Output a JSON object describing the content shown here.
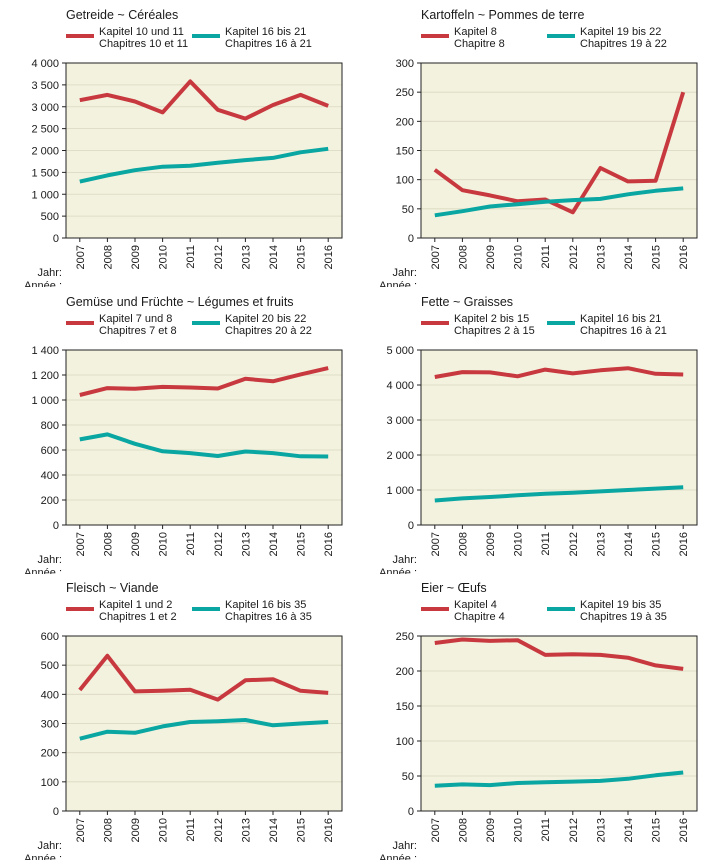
{
  "axis_captions": [
    "Jahr:",
    "Année :"
  ],
  "colors": {
    "red": "#c8393f",
    "teal": "#0aa6a2"
  },
  "chart_data": [
    {
      "type": "line",
      "title": "Getreide  ~  Céréales",
      "x": [
        "2007",
        "2008",
        "2009",
        "2010",
        "2011",
        "2012",
        "2013",
        "2014",
        "2015",
        "2016"
      ],
      "ylim": [
        0,
        4000
      ],
      "yticks": [
        0,
        500,
        1000,
        1500,
        2000,
        2500,
        3000,
        3500,
        4000
      ],
      "ytick_labels": [
        "0",
        "500",
        "1 000",
        "1 500",
        "2 000",
        "2 500",
        "3 000",
        "3 500",
        "4 000"
      ],
      "series": [
        {
          "name": "Kapitel 10 und 11",
          "name2": "Chapitres 10 et 11",
          "color": "#c8393f",
          "values": [
            3150,
            3270,
            3120,
            2870,
            3580,
            2930,
            2730,
            3040,
            3270,
            3020
          ]
        },
        {
          "name": "Kapitel 16 bis 21",
          "name2": "Chapitres 16 à 21",
          "color": "#0aa6a2",
          "values": [
            1290,
            1430,
            1550,
            1630,
            1650,
            1720,
            1780,
            1830,
            1960,
            2040
          ]
        }
      ]
    },
    {
      "type": "line",
      "title": "Kartoffeln  ~  Pommes de terre",
      "x": [
        "2007",
        "2008",
        "2009",
        "2010",
        "2011",
        "2012",
        "2013",
        "2014",
        "2015",
        "2016"
      ],
      "ylim": [
        0,
        300
      ],
      "yticks": [
        0,
        50,
        100,
        150,
        200,
        250,
        300
      ],
      "ytick_labels": [
        "0",
        "50",
        "100",
        "150",
        "200",
        "250",
        "300"
      ],
      "series": [
        {
          "name": "Kapitel 8",
          "name2": "Chapitre 8",
          "color": "#c8393f",
          "values": [
            117,
            82,
            73,
            63,
            66,
            44,
            120,
            97,
            98,
            250
          ]
        },
        {
          "name": "Kapitel 19 bis 22",
          "name2": "Chapitres 19 à 22",
          "color": "#0aa6a2",
          "values": [
            39,
            46,
            54,
            58,
            62,
            65,
            67,
            75,
            81,
            85
          ]
        }
      ]
    },
    {
      "type": "line",
      "title": "Gemüse und Früchte  ~  Légumes et fruits",
      "x": [
        "2007",
        "2008",
        "2009",
        "2010",
        "2011",
        "2012",
        "2013",
        "2014",
        "2015",
        "2016"
      ],
      "ylim": [
        0,
        1400
      ],
      "yticks": [
        0,
        200,
        400,
        600,
        800,
        1000,
        1200,
        1400
      ],
      "ytick_labels": [
        "0",
        "200",
        "400",
        "600",
        "800",
        "1 000",
        "1 200",
        "1 400"
      ],
      "series": [
        {
          "name": "Kapitel 7 und 8",
          "name2": "Chapitres 7 et 8",
          "color": "#c8393f",
          "values": [
            1040,
            1095,
            1090,
            1105,
            1100,
            1092,
            1170,
            1150,
            1205,
            1255
          ]
        },
        {
          "name": "Kapitel 20 bis 22",
          "name2": "Chapitres 20 à 22",
          "color": "#0aa6a2",
          "values": [
            685,
            725,
            650,
            590,
            575,
            552,
            588,
            575,
            550,
            548
          ]
        }
      ]
    },
    {
      "type": "line",
      "title": "Fette  ~  Graisses",
      "x": [
        "2007",
        "2008",
        "2009",
        "2010",
        "2011",
        "2012",
        "2013",
        "2014",
        "2015",
        "2016"
      ],
      "ylim": [
        0,
        5000
      ],
      "yticks": [
        0,
        1000,
        2000,
        3000,
        4000,
        5000
      ],
      "ytick_labels": [
        "0",
        "1 000",
        "2 000",
        "3 000",
        "4 000",
        "5 000"
      ],
      "series": [
        {
          "name": "Kapitel 2 bis 15",
          "name2": "Chapitres 2 à 15",
          "color": "#c8393f",
          "values": [
            4230,
            4370,
            4360,
            4250,
            4440,
            4330,
            4420,
            4480,
            4320,
            4300
          ]
        },
        {
          "name": "Kapitel 16 bis 21",
          "name2": "Chapitres 16 à 21",
          "color": "#0aa6a2",
          "values": [
            700,
            760,
            800,
            850,
            890,
            920,
            960,
            1000,
            1040,
            1080
          ]
        }
      ]
    },
    {
      "type": "line",
      "title": "Fleisch  ~  Viande",
      "x": [
        "2007",
        "2008",
        "2009",
        "2010",
        "2011",
        "2012",
        "2013",
        "2014",
        "2015",
        "2016"
      ],
      "ylim": [
        0,
        600
      ],
      "yticks": [
        0,
        100,
        200,
        300,
        400,
        500,
        600
      ],
      "ytick_labels": [
        "0",
        "100",
        "200",
        "300",
        "400",
        "500",
        "600"
      ],
      "series": [
        {
          "name": "Kapitel 1 und 2",
          "name2": "Chapitres 1 et 2",
          "color": "#c8393f",
          "values": [
            415,
            532,
            410,
            412,
            416,
            382,
            448,
            452,
            412,
            405
          ]
        },
        {
          "name": "Kapitel 16 bis 35",
          "name2": "Chapitres 16 à 35",
          "color": "#0aa6a2",
          "values": [
            248,
            272,
            268,
            290,
            305,
            308,
            312,
            294,
            300,
            305
          ]
        }
      ]
    },
    {
      "type": "line",
      "title": "Eier  ~  Œufs",
      "x": [
        "2007",
        "2008",
        "2009",
        "2010",
        "2011",
        "2012",
        "2013",
        "2014",
        "2015",
        "2016"
      ],
      "ylim": [
        0,
        250
      ],
      "yticks": [
        0,
        50,
        100,
        150,
        200,
        250
      ],
      "ytick_labels": [
        "0",
        "50",
        "100",
        "150",
        "200",
        "250"
      ],
      "series": [
        {
          "name": "Kapitel 4",
          "name2": "Chapitre 4",
          "color": "#c8393f",
          "values": [
            240,
            245,
            243,
            244,
            223,
            224,
            223,
            219,
            208,
            203
          ]
        },
        {
          "name": "Kapitel 19 bis 35",
          "name2": "Chapitres 19 à 35",
          "color": "#0aa6a2",
          "values": [
            36,
            38,
            37,
            40,
            41,
            42,
            43,
            46,
            51,
            55
          ]
        }
      ]
    }
  ]
}
